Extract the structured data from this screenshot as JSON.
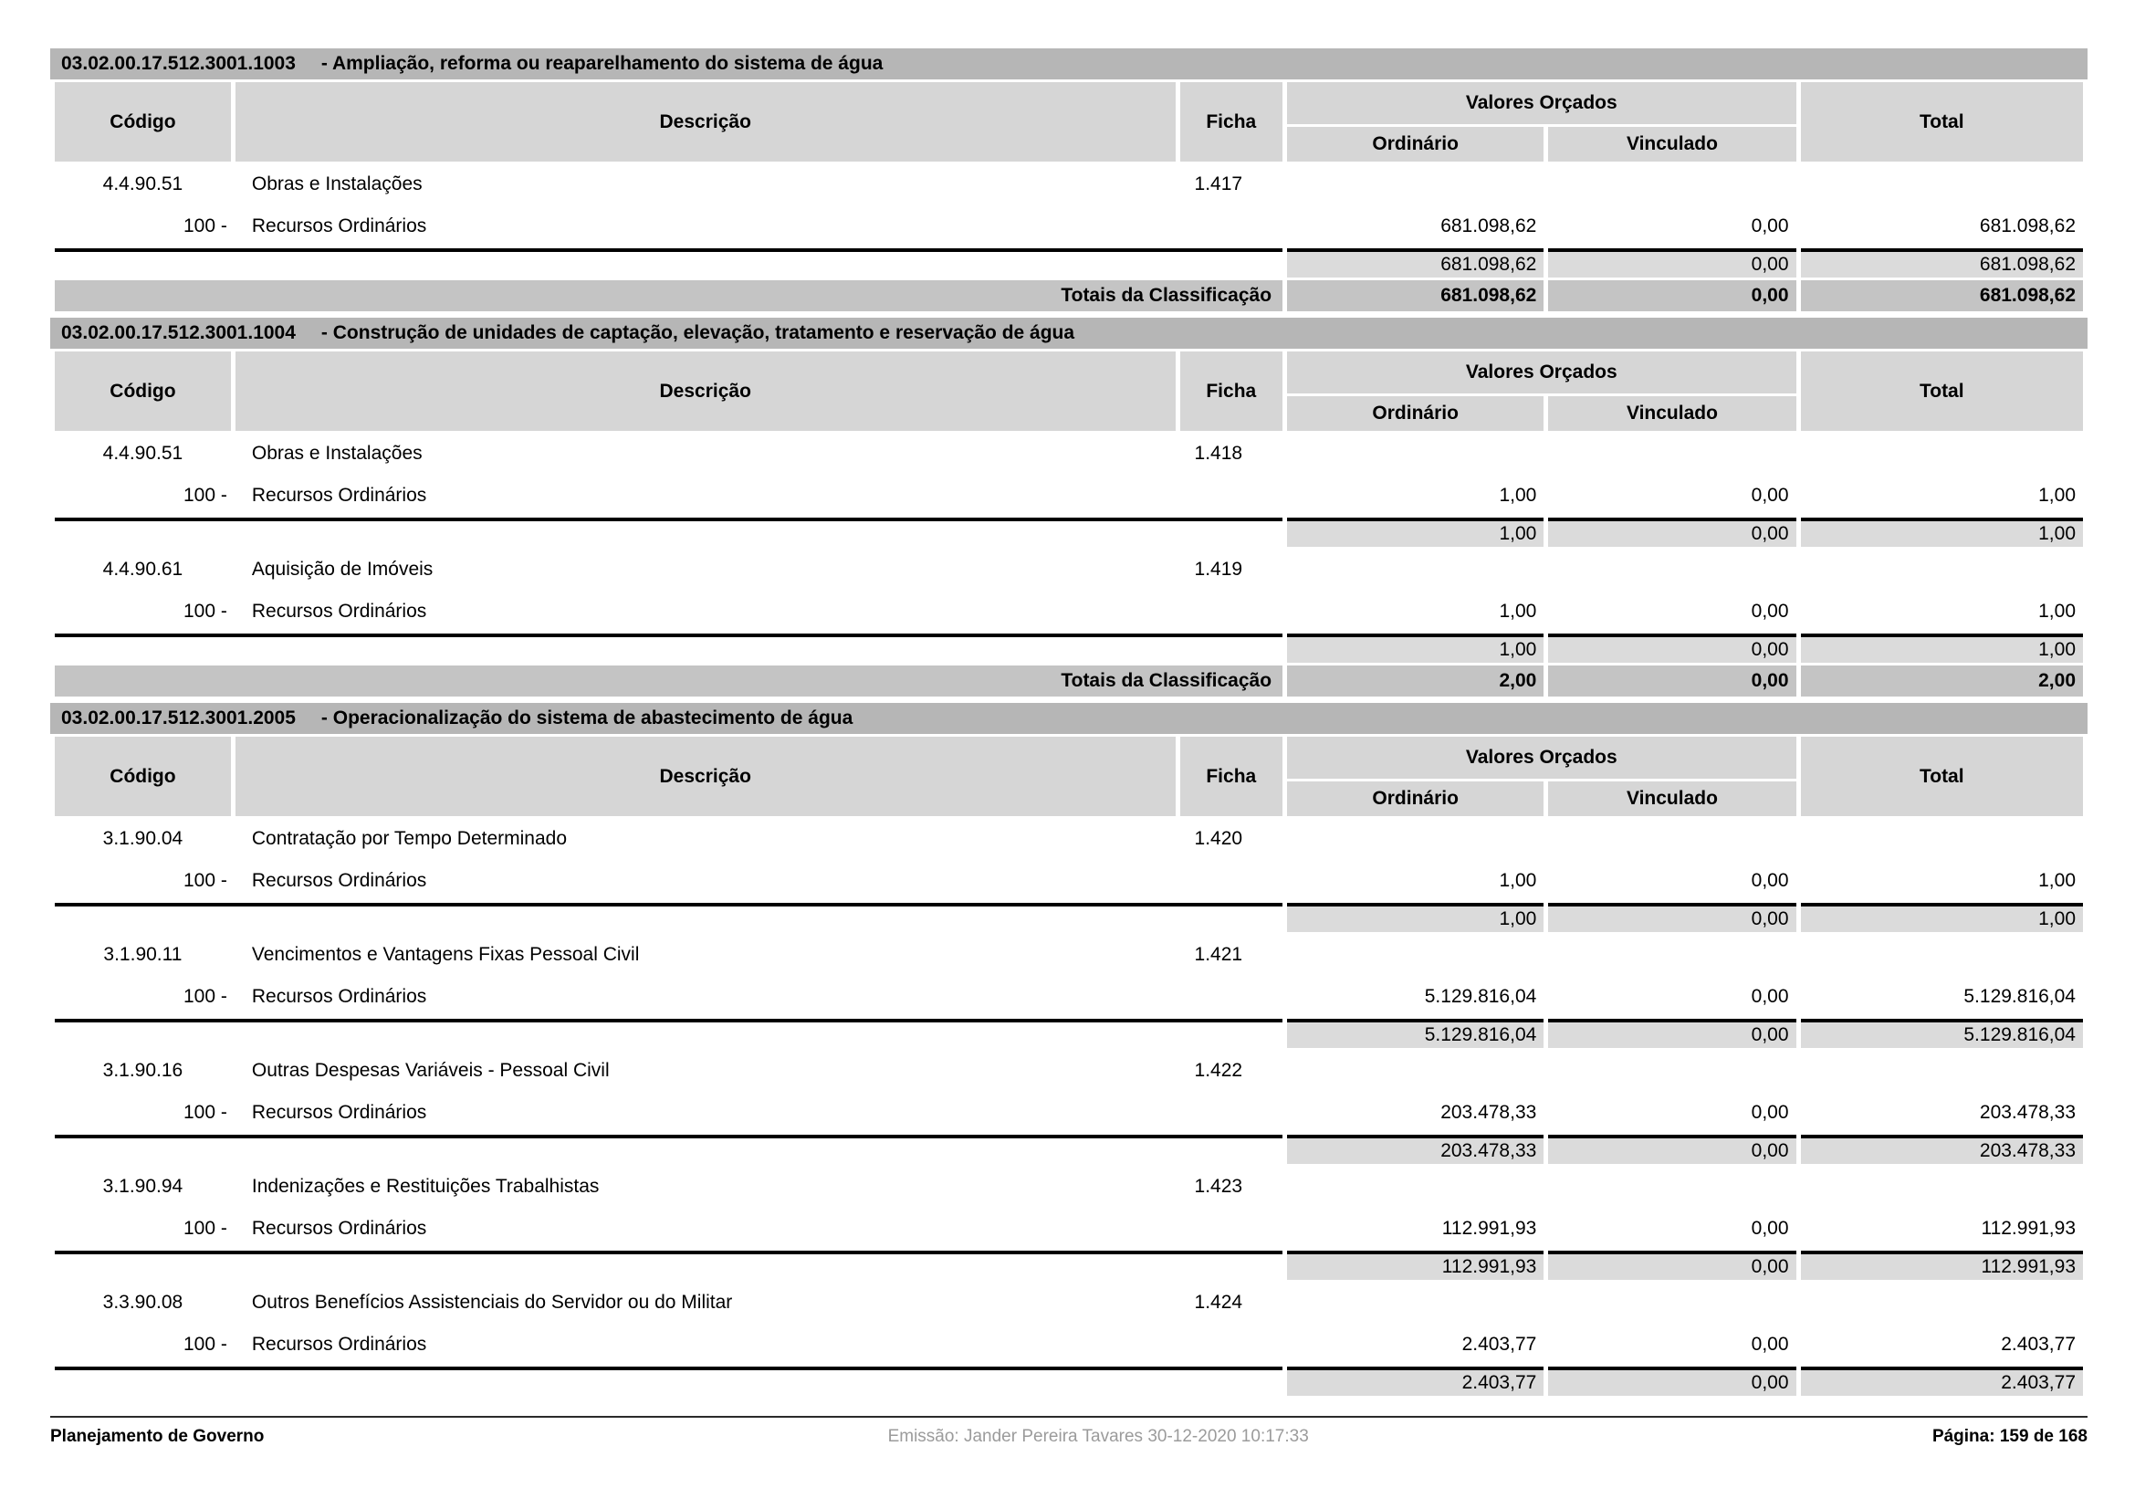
{
  "labels": {
    "totals": "Totais da Classificação"
  },
  "table_header": {
    "codigo": "Código",
    "descricao": "Descrição",
    "ficha": "Ficha",
    "valores_orcados": "Valores Orçados",
    "ordinario": "Ordinário",
    "vinculado": "Vinculado",
    "total": "Total"
  },
  "sections": [
    {
      "code": "03.02.00.17.512.3001.1003",
      "title": "- Ampliação, reforma ou reaparelhamento do sistema de água",
      "items": [
        {
          "code": "4.4.90.51",
          "description": "Obras e Instalações",
          "ficha": "1.417",
          "source": {
            "code": "100 -",
            "name": "Recursos Ordinários",
            "ordinario": "681.098,62",
            "vinculado": "0,00",
            "total": "681.098,62"
          },
          "subtotal": {
            "ordinario": "681.098,62",
            "vinculado": "0,00",
            "total": "681.098,62"
          }
        }
      ],
      "totals": {
        "ordinario": "681.098,62",
        "vinculado": "0,00",
        "total": "681.098,62"
      }
    },
    {
      "code": "03.02.00.17.512.3001.1004",
      "title": "- Construção de unidades de captação, elevação, tratamento e reservação de água",
      "items": [
        {
          "code": "4.4.90.51",
          "description": "Obras e Instalações",
          "ficha": "1.418",
          "source": {
            "code": "100 -",
            "name": "Recursos Ordinários",
            "ordinario": "1,00",
            "vinculado": "0,00",
            "total": "1,00"
          },
          "subtotal": {
            "ordinario": "1,00",
            "vinculado": "0,00",
            "total": "1,00"
          }
        },
        {
          "code": "4.4.90.61",
          "description": "Aquisição de Imóveis",
          "ficha": "1.419",
          "source": {
            "code": "100 -",
            "name": "Recursos Ordinários",
            "ordinario": "1,00",
            "vinculado": "0,00",
            "total": "1,00"
          },
          "subtotal": {
            "ordinario": "1,00",
            "vinculado": "0,00",
            "total": "1,00"
          }
        }
      ],
      "totals": {
        "ordinario": "2,00",
        "vinculado": "0,00",
        "total": "2,00"
      }
    },
    {
      "code": "03.02.00.17.512.3001.2005",
      "title": "- Operacionalização do sistema de abastecimento de água",
      "items": [
        {
          "code": "3.1.90.04",
          "description": "Contratação por Tempo Determinado",
          "ficha": "1.420",
          "source": {
            "code": "100 -",
            "name": "Recursos Ordinários",
            "ordinario": "1,00",
            "vinculado": "0,00",
            "total": "1,00"
          },
          "subtotal": {
            "ordinario": "1,00",
            "vinculado": "0,00",
            "total": "1,00"
          }
        },
        {
          "code": "3.1.90.11",
          "description": "Vencimentos e Vantagens Fixas  Pessoal Civil",
          "ficha": "1.421",
          "source": {
            "code": "100 -",
            "name": "Recursos Ordinários",
            "ordinario": "5.129.816,04",
            "vinculado": "0,00",
            "total": "5.129.816,04"
          },
          "subtotal": {
            "ordinario": "5.129.816,04",
            "vinculado": "0,00",
            "total": "5.129.816,04"
          }
        },
        {
          "code": "3.1.90.16",
          "description": "Outras Despesas Variáveis - Pessoal Civil",
          "ficha": "1.422",
          "source": {
            "code": "100 -",
            "name": "Recursos Ordinários",
            "ordinario": "203.478,33",
            "vinculado": "0,00",
            "total": "203.478,33"
          },
          "subtotal": {
            "ordinario": "203.478,33",
            "vinculado": "0,00",
            "total": "203.478,33"
          }
        },
        {
          "code": "3.1.90.94",
          "description": "Indenizações e Restituições Trabalhistas",
          "ficha": "1.423",
          "source": {
            "code": "100 -",
            "name": "Recursos Ordinários",
            "ordinario": "112.991,93",
            "vinculado": "0,00",
            "total": "112.991,93"
          },
          "subtotal": {
            "ordinario": "112.991,93",
            "vinculado": "0,00",
            "total": "112.991,93"
          }
        },
        {
          "code": "3.3.90.08",
          "description": "Outros Benefícios Assistenciais do Servidor ou do Militar",
          "ficha": "1.424",
          "source": {
            "code": "100 -",
            "name": "Recursos Ordinários",
            "ordinario": "2.403,77",
            "vinculado": "0,00",
            "total": "2.403,77"
          },
          "subtotal": {
            "ordinario": "2.403,77",
            "vinculado": "0,00",
            "total": "2.403,77"
          }
        }
      ]
    }
  ],
  "footer": {
    "left": "Planejamento de Governo",
    "center": "Emissão: Jander Pereira Tavares 30-12-2020 10:17:33",
    "right": "Página: 159 de 168"
  },
  "colors": {
    "section_bar": "#b6b6b6",
    "header_cell": "#d6d6d6",
    "subtotal_row": "#dbdbdb",
    "totals_row": "#c4c4c4"
  }
}
